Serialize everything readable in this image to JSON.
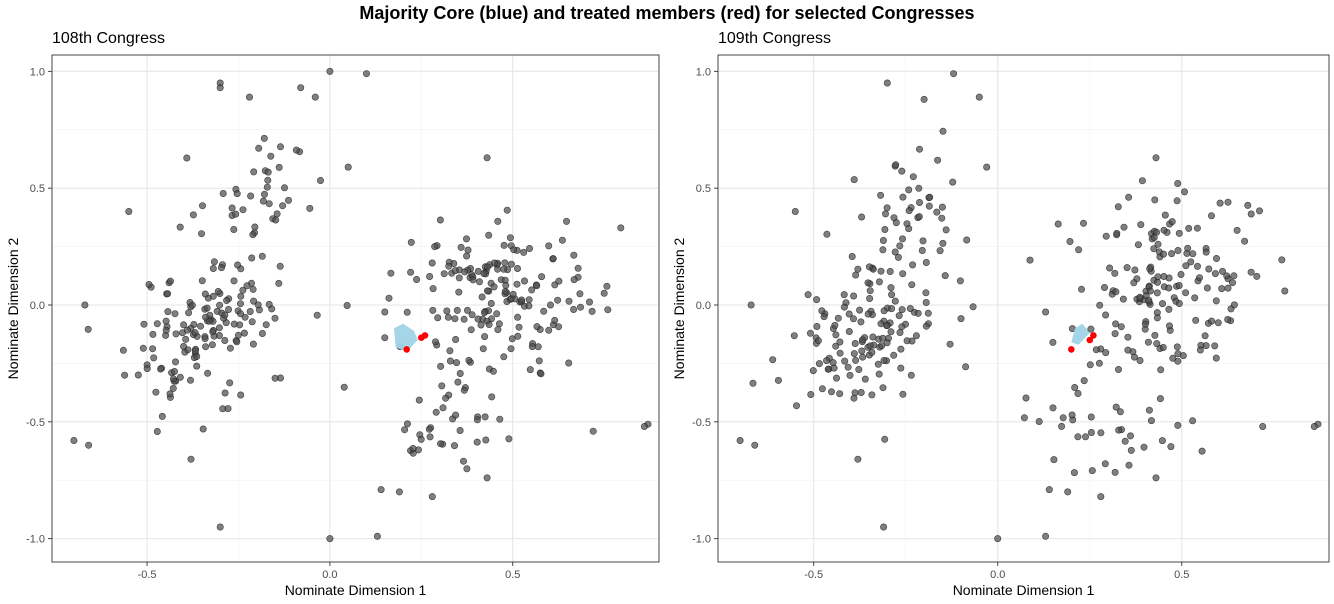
{
  "title": "Majority Core (blue) and treated members (red) for selected Congresses",
  "colors": {
    "points": "#4d4d4d",
    "core": "#9fd4e6",
    "treated": "#ff0000"
  },
  "chart_data": [
    {
      "type": "scatter",
      "title": "108th Congress",
      "xlabel": "Nominate Dimension 1",
      "ylabel": "Nominate Dimension 2",
      "xlim": [
        -0.76,
        0.9
      ],
      "ylim": [
        -1.1,
        1.07
      ],
      "xticks": [
        -0.5,
        0.0,
        0.5
      ],
      "xtick_labels": [
        "-0.5",
        "0.0",
        "0.5"
      ],
      "yticks": [
        -1.0,
        -0.5,
        0.0,
        0.5,
        1.0
      ],
      "ytick_labels": [
        "-1.0",
        "-0.5",
        "0.0",
        "0.5",
        "1.0"
      ],
      "grid": true,
      "seed": 108,
      "core_polygon": [
        [
          0.175,
          -0.1
        ],
        [
          0.2,
          -0.08
        ],
        [
          0.23,
          -0.11
        ],
        [
          0.24,
          -0.15
        ],
        [
          0.21,
          -0.2
        ],
        [
          0.18,
          -0.18
        ]
      ],
      "treated_points": [
        [
          0.21,
          -0.19
        ],
        [
          0.25,
          -0.14
        ],
        [
          0.26,
          -0.13
        ]
      ],
      "fixed_points": [
        [
          0.0,
          1.0
        ],
        [
          0.1,
          0.99
        ],
        [
          -0.3,
          0.95
        ],
        [
          -0.3,
          0.93
        ],
        [
          -0.22,
          0.89
        ],
        [
          -0.08,
          0.93
        ],
        [
          -0.04,
          0.89
        ],
        [
          -0.3,
          -0.95
        ],
        [
          0.0,
          -1.0
        ],
        [
          0.13,
          -0.99
        ],
        [
          0.87,
          -0.51
        ],
        [
          0.86,
          -0.52
        ],
        [
          -0.66,
          -0.6
        ],
        [
          -0.7,
          -0.58
        ],
        [
          0.14,
          -0.79
        ],
        [
          0.19,
          -0.8
        ],
        [
          0.28,
          -0.82
        ],
        [
          0.43,
          -0.74
        ],
        [
          -0.38,
          -0.66
        ],
        [
          0.43,
          0.63
        ],
        [
          0.05,
          0.59
        ],
        [
          0.15,
          -0.03
        ],
        [
          0.15,
          -0.14
        ],
        [
          -0.67,
          0.0
        ],
        [
          -0.55,
          0.4
        ],
        [
          0.75,
          0.05
        ],
        [
          0.76,
          -0.02
        ],
        [
          0.72,
          -0.54
        ]
      ],
      "clusters": [
        {
          "n": 145,
          "cx": -0.35,
          "cy": -0.1,
          "sx": 0.11,
          "sy": 0.2,
          "rho": 0.5
        },
        {
          "n": 40,
          "cx": -0.23,
          "cy": 0.45,
          "sx": 0.09,
          "sy": 0.18,
          "rho": 0.4
        },
        {
          "n": 170,
          "cx": 0.45,
          "cy": 0.05,
          "sx": 0.12,
          "sy": 0.18,
          "rho": 0.1
        },
        {
          "n": 35,
          "cx": 0.32,
          "cy": -0.52,
          "sx": 0.12,
          "sy": 0.12,
          "rho": 0.0
        }
      ]
    },
    {
      "type": "scatter",
      "title": "109th Congress",
      "xlabel": "Nominate Dimension 1",
      "ylabel": "Nominate Dimension 2",
      "xlim": [
        -0.76,
        0.9
      ],
      "ylim": [
        -1.1,
        1.07
      ],
      "xticks": [
        -0.5,
        0.0,
        0.5
      ],
      "xtick_labels": [
        "-0.5",
        "0.0",
        "0.5"
      ],
      "yticks": [
        -1.0,
        -0.5,
        0.0,
        0.5,
        1.0
      ],
      "ytick_labels": [
        "-1.0",
        "-0.5",
        "0.0",
        "0.5",
        "1.0"
      ],
      "grid": true,
      "seed": 109,
      "core_polygon": [
        [
          0.21,
          -0.1
        ],
        [
          0.23,
          -0.08
        ],
        [
          0.25,
          -0.12
        ],
        [
          0.22,
          -0.17
        ],
        [
          0.2,
          -0.16
        ]
      ],
      "treated_points": [
        [
          0.2,
          -0.19
        ],
        [
          0.25,
          -0.15
        ],
        [
          0.26,
          -0.13
        ]
      ],
      "fixed_points": [
        [
          -0.12,
          0.99
        ],
        [
          -0.05,
          0.89
        ],
        [
          -0.3,
          0.95
        ],
        [
          -0.2,
          0.88
        ],
        [
          -0.31,
          -0.95
        ],
        [
          0.0,
          -1.0
        ],
        [
          0.13,
          -0.99
        ],
        [
          0.87,
          -0.51
        ],
        [
          0.86,
          -0.52
        ],
        [
          -0.66,
          -0.6
        ],
        [
          -0.7,
          -0.58
        ],
        [
          0.14,
          -0.79
        ],
        [
          0.19,
          -0.8
        ],
        [
          0.28,
          -0.82
        ],
        [
          0.43,
          -0.74
        ],
        [
          -0.38,
          -0.66
        ],
        [
          0.43,
          0.63
        ],
        [
          -0.03,
          0.59
        ],
        [
          0.13,
          -0.03
        ],
        [
          0.15,
          -0.16
        ],
        [
          -0.67,
          0.0
        ],
        [
          -0.55,
          0.4
        ],
        [
          0.78,
          0.06
        ],
        [
          0.72,
          -0.52
        ]
      ],
      "clusters": [
        {
          "n": 145,
          "cx": -0.34,
          "cy": -0.1,
          "sx": 0.11,
          "sy": 0.2,
          "rho": 0.5
        },
        {
          "n": 38,
          "cx": -0.23,
          "cy": 0.45,
          "sx": 0.09,
          "sy": 0.18,
          "rho": 0.4
        },
        {
          "n": 170,
          "cx": 0.45,
          "cy": 0.05,
          "sx": 0.12,
          "sy": 0.18,
          "rho": 0.1
        },
        {
          "n": 35,
          "cx": 0.33,
          "cy": -0.5,
          "sx": 0.12,
          "sy": 0.12,
          "rho": 0.0
        }
      ]
    }
  ]
}
